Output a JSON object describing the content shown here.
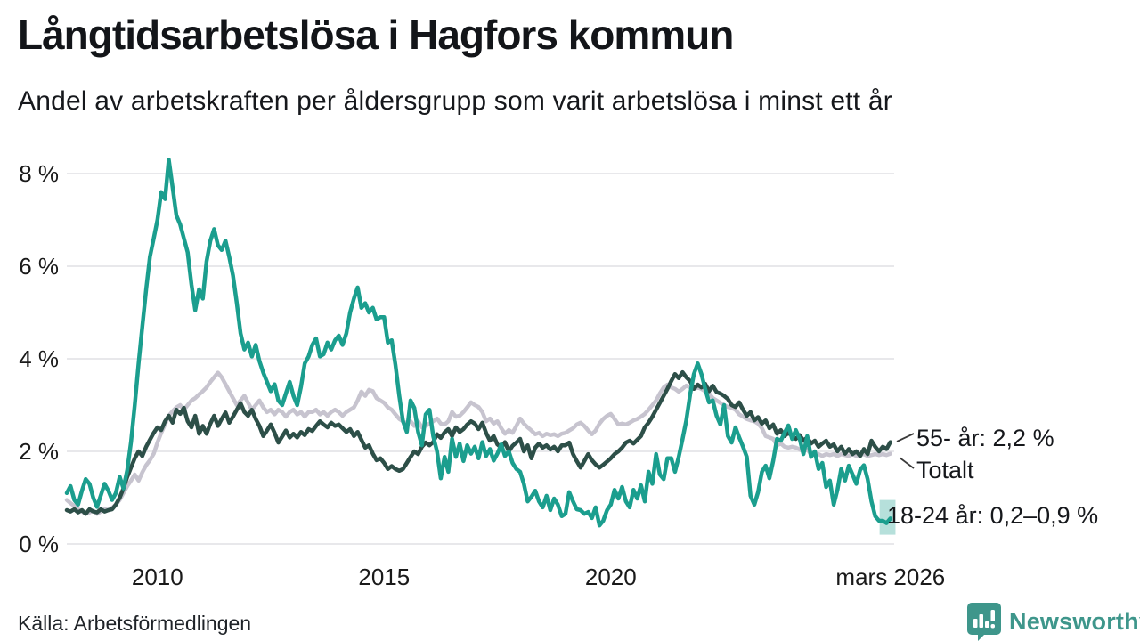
{
  "header": {
    "title": "Långtidsarbetslösa i Hagfors kommun",
    "subtitle": "Andel av arbetskraften per åldersgrupp som varit arbetslösa i minst ett år"
  },
  "annotations": {
    "old": "55- år: 2,2 %",
    "total": "Totalt",
    "young": "18-24 år: 0,2–0,9 %"
  },
  "footer": {
    "source": "Källa: Arbetsförmedlingen",
    "brand": "Newsworthy"
  },
  "colors": {
    "young": "#1b9e8e",
    "old": "#2d4f48",
    "total": "#c7c4cf",
    "grid": "#e8e8eb",
    "band": "#1b9e8e",
    "connector": "#3a3a3a",
    "logo": "#3e968b"
  },
  "chart_data": {
    "type": "line",
    "title": "Långtidsarbetslösa i Hagfors kommun",
    "subtitle": "Andel av arbetskraften per åldersgrupp som varit arbetslösa i minst ett år",
    "x_unit": "months",
    "x_start": 2008.0,
    "x_end": 2026.25,
    "ylim": [
      0,
      8.6
    ],
    "grid": true,
    "y_ticks": [
      {
        "value": 0,
        "label": "0 %"
      },
      {
        "value": 2,
        "label": "2 %"
      },
      {
        "value": 4,
        "label": "4 %"
      },
      {
        "value": 6,
        "label": "6 %"
      },
      {
        "value": 8,
        "label": "8 %"
      }
    ],
    "x_ticks": [
      {
        "t": 2010.0,
        "label": "2010"
      },
      {
        "t": 2015.0,
        "label": "2015"
      },
      {
        "t": 2020.0,
        "label": "2020"
      },
      {
        "t": 2026.17,
        "label": "mars 2026"
      }
    ],
    "highlight_band": {
      "series": "18-24 år",
      "x_from": 2025.93,
      "x_to": 2026.28,
      "y_from": 0.2,
      "y_to": 0.95
    },
    "series": [
      {
        "name": "18-24 år",
        "color_key": "young",
        "end_label": "18-24 år: 0,2–0,9 %",
        "values": [
          1.1,
          1.25,
          0.95,
          0.85,
          1.15,
          1.4,
          1.3,
          1.0,
          0.8,
          1.05,
          1.3,
          1.15,
          0.95,
          1.1,
          1.45,
          1.2,
          1.6,
          2.2,
          3.0,
          3.9,
          4.7,
          5.5,
          6.2,
          6.6,
          7.0,
          7.6,
          7.45,
          8.3,
          7.7,
          7.1,
          6.9,
          6.6,
          6.3,
          5.6,
          5.05,
          5.5,
          5.3,
          6.1,
          6.55,
          6.8,
          6.45,
          6.35,
          6.55,
          6.2,
          5.8,
          5.2,
          4.55,
          4.2,
          4.35,
          4.05,
          4.3,
          3.95,
          3.7,
          3.5,
          3.3,
          3.45,
          3.1,
          3.0,
          3.25,
          3.5,
          3.2,
          3.0,
          3.4,
          3.9,
          4.05,
          4.3,
          4.44,
          4.05,
          4.1,
          4.35,
          4.2,
          4.4,
          4.5,
          4.3,
          4.55,
          5.0,
          5.3,
          5.54,
          5.1,
          5.2,
          5.0,
          5.1,
          4.85,
          4.9,
          4.9,
          4.35,
          4.4,
          3.87,
          3.2,
          2.65,
          2.42,
          3.1,
          2.94,
          2.42,
          2.13,
          2.8,
          2.9,
          2.33,
          2.0,
          1.42,
          1.88,
          1.56,
          2.27,
          1.88,
          2.17,
          1.79,
          2.13,
          1.95,
          2.1,
          1.85,
          2.2,
          1.9,
          2.05,
          1.8,
          1.95,
          2.15,
          1.9,
          2.0,
          1.75,
          1.62,
          1.56,
          1.3,
          0.92,
          1.02,
          1.15,
          0.92,
          0.79,
          1.04,
          0.73,
          0.98,
          0.85,
          0.6,
          0.65,
          1.12,
          0.92,
          0.75,
          0.73,
          0.65,
          0.69,
          0.56,
          0.79,
          0.4,
          0.5,
          0.73,
          0.85,
          1.17,
          0.98,
          1.23,
          0.92,
          0.79,
          1.17,
          0.98,
          1.27,
          0.92,
          1.56,
          1.3,
          1.94,
          1.5,
          1.4,
          1.85,
          1.85,
          1.56,
          1.88,
          2.27,
          2.67,
          3.23,
          3.67,
          3.9,
          3.67,
          3.35,
          3.06,
          3.1,
          2.77,
          2.58,
          3.0,
          2.33,
          2.19,
          2.52,
          2.3,
          2.1,
          1.88,
          1.04,
          0.85,
          1.12,
          1.56,
          1.69,
          1.42,
          1.8,
          2.27,
          2.23,
          2.4,
          2.56,
          2.27,
          2.46,
          2.27,
          1.94,
          2.33,
          1.88,
          2.0,
          1.62,
          1.75,
          1.23,
          1.37,
          0.85,
          1.17,
          1.62,
          1.37,
          1.69,
          1.5,
          1.3,
          1.6,
          1.7,
          1.4,
          0.92,
          0.6,
          0.5,
          0.5,
          0.45,
          0.55
        ]
      },
      {
        "name": "55- år",
        "color_key": "old",
        "end_label": "55- år: 2,2 %",
        "values": [
          0.73,
          0.7,
          0.75,
          0.68,
          0.73,
          0.65,
          0.75,
          0.7,
          0.68,
          0.75,
          0.7,
          0.73,
          0.75,
          0.85,
          1.0,
          1.2,
          1.45,
          1.65,
          1.85,
          2.0,
          1.9,
          2.1,
          2.25,
          2.4,
          2.52,
          2.46,
          2.65,
          2.77,
          2.62,
          2.9,
          2.81,
          2.94,
          2.65,
          2.52,
          2.77,
          2.38,
          2.55,
          2.38,
          2.6,
          2.77,
          2.55,
          2.7,
          2.84,
          2.62,
          2.75,
          2.9,
          3.04,
          2.85,
          2.77,
          2.9,
          2.7,
          2.55,
          2.33,
          2.45,
          2.58,
          2.4,
          2.19,
          2.32,
          2.45,
          2.3,
          2.38,
          2.3,
          2.42,
          2.35,
          2.48,
          2.44,
          2.55,
          2.65,
          2.58,
          2.52,
          2.62,
          2.55,
          2.58,
          2.5,
          2.42,
          2.48,
          2.33,
          2.42,
          2.25,
          2.08,
          2.13,
          1.95,
          1.81,
          1.85,
          1.75,
          1.62,
          1.68,
          1.62,
          1.58,
          1.62,
          1.75,
          1.88,
          2.0,
          1.94,
          2.1,
          2.19,
          2.13,
          2.2,
          2.37,
          2.29,
          2.41,
          2.48,
          2.33,
          2.52,
          2.42,
          2.48,
          2.58,
          2.65,
          2.6,
          2.48,
          2.62,
          2.4,
          2.23,
          2.33,
          2.15,
          2.08,
          2.2,
          2.0,
          2.12,
          2.19,
          2.27,
          2.0,
          2.13,
          1.85,
          2.08,
          2.17,
          2.08,
          2.13,
          2.04,
          2.1,
          2.0,
          2.13,
          2.13,
          2.19,
          1.94,
          1.79,
          1.65,
          1.79,
          1.94,
          1.81,
          1.72,
          1.65,
          1.71,
          1.78,
          1.85,
          1.94,
          2.0,
          2.08,
          2.19,
          2.23,
          2.17,
          2.25,
          2.33,
          2.52,
          2.62,
          2.75,
          2.9,
          3.05,
          3.2,
          3.35,
          3.52,
          3.67,
          3.58,
          3.71,
          3.6,
          3.52,
          3.35,
          3.44,
          3.38,
          3.46,
          3.3,
          3.42,
          3.28,
          3.25,
          3.2,
          3.13,
          3.0,
          2.96,
          3.06,
          2.9,
          2.77,
          2.85,
          2.67,
          2.74,
          2.6,
          2.67,
          2.5,
          2.58,
          2.38,
          2.46,
          2.33,
          2.4,
          2.33,
          2.27,
          2.35,
          2.23,
          2.3,
          2.17,
          2.23,
          2.1,
          2.17,
          2.23,
          2.1,
          2.15,
          2.0,
          2.1,
          1.95,
          2.05,
          1.94,
          2.0,
          1.9,
          2.05,
          1.94,
          2.23,
          2.1,
          2.0,
          2.1,
          2.05,
          2.2
        ]
      },
      {
        "name": "Totalt",
        "color_key": "total",
        "end_label": "Totalt",
        "values": [
          0.95,
          0.88,
          0.82,
          0.75,
          0.7,
          0.65,
          0.68,
          0.72,
          0.65,
          0.7,
          0.75,
          0.73,
          0.78,
          0.85,
          0.95,
          1.1,
          1.25,
          1.37,
          1.5,
          1.37,
          1.55,
          1.7,
          1.81,
          1.95,
          2.19,
          2.4,
          2.58,
          2.77,
          2.87,
          2.95,
          3.0,
          2.9,
          3.0,
          3.1,
          3.15,
          3.23,
          3.3,
          3.38,
          3.5,
          3.6,
          3.7,
          3.6,
          3.45,
          3.3,
          3.15,
          3.0,
          3.1,
          3.2,
          3.05,
          2.9,
          3.0,
          3.1,
          2.95,
          2.85,
          2.9,
          2.8,
          2.9,
          2.85,
          2.75,
          2.85,
          2.9,
          2.8,
          2.85,
          2.75,
          2.85,
          2.85,
          2.9,
          2.8,
          2.85,
          2.77,
          2.85,
          2.9,
          2.85,
          2.77,
          2.85,
          2.9,
          2.95,
          3.1,
          3.29,
          3.2,
          3.33,
          3.3,
          3.15,
          3.1,
          3.05,
          2.95,
          2.9,
          2.8,
          2.7,
          2.65,
          2.6,
          2.65,
          2.55,
          2.65,
          2.52,
          2.55,
          2.6,
          2.65,
          2.71,
          2.6,
          2.58,
          2.65,
          2.85,
          2.75,
          2.77,
          2.85,
          2.95,
          3.06,
          3.0,
          2.96,
          2.85,
          2.65,
          2.71,
          2.6,
          2.65,
          2.5,
          2.38,
          2.46,
          2.4,
          2.55,
          2.71,
          2.6,
          2.52,
          2.45,
          2.37,
          2.4,
          2.33,
          2.38,
          2.35,
          2.37,
          2.33,
          2.38,
          2.4,
          2.45,
          2.5,
          2.58,
          2.62,
          2.55,
          2.45,
          2.37,
          2.45,
          2.6,
          2.7,
          2.77,
          2.81,
          2.7,
          2.58,
          2.6,
          2.58,
          2.62,
          2.67,
          2.7,
          2.75,
          2.81,
          2.9,
          3.0,
          3.1,
          3.25,
          3.38,
          3.44,
          3.38,
          3.35,
          3.29,
          3.35,
          3.42,
          3.38,
          3.35,
          3.38,
          3.35,
          3.3,
          3.25,
          3.15,
          3.1,
          3.05,
          3.0,
          2.96,
          2.94,
          2.9,
          2.8,
          2.75,
          2.7,
          2.67,
          2.65,
          2.6,
          2.5,
          2.33,
          2.3,
          2.27,
          2.13,
          2.17,
          2.1,
          2.08,
          2.1,
          2.08,
          2.04,
          2.0,
          2.04,
          1.94,
          1.97,
          1.94,
          1.9,
          1.94,
          1.92,
          1.94,
          1.9,
          1.94,
          1.92,
          1.9,
          1.94,
          1.9,
          1.92,
          1.94,
          1.9,
          1.92,
          1.94,
          1.92,
          1.94,
          1.92,
          1.95
        ]
      }
    ]
  }
}
